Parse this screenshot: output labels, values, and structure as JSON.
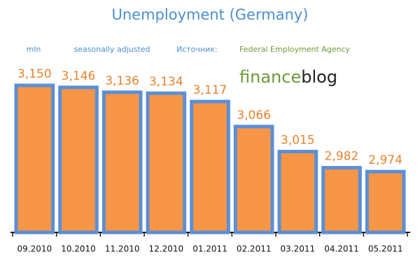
{
  "chart_data": {
    "type": "bar",
    "title": "Unemployment (Germany)",
    "unit": "mln",
    "note": "seasonally adjusted",
    "source_label": "Источник:",
    "source": "Federal Employment Agency",
    "logo": {
      "part1": "finance",
      "part2": "blog"
    },
    "categories": [
      "09.2010",
      "10.2010",
      "11.2010",
      "12.2010",
      "01.2011",
      "02.2011",
      "03.2011",
      "04.2011",
      "05.2011"
    ],
    "values": [
      3150,
      3146,
      3136,
      3134,
      3117,
      3066,
      3015,
      2982,
      2974
    ],
    "value_labels": [
      "3,150",
      "3,146",
      "3,136",
      "3,134",
      "3,117",
      "3,066",
      "3,015",
      "2,982",
      "2,974"
    ],
    "color": "#f79646",
    "edge_color": "#5b8fd6",
    "ylim": [
      2850,
      3200
    ]
  }
}
